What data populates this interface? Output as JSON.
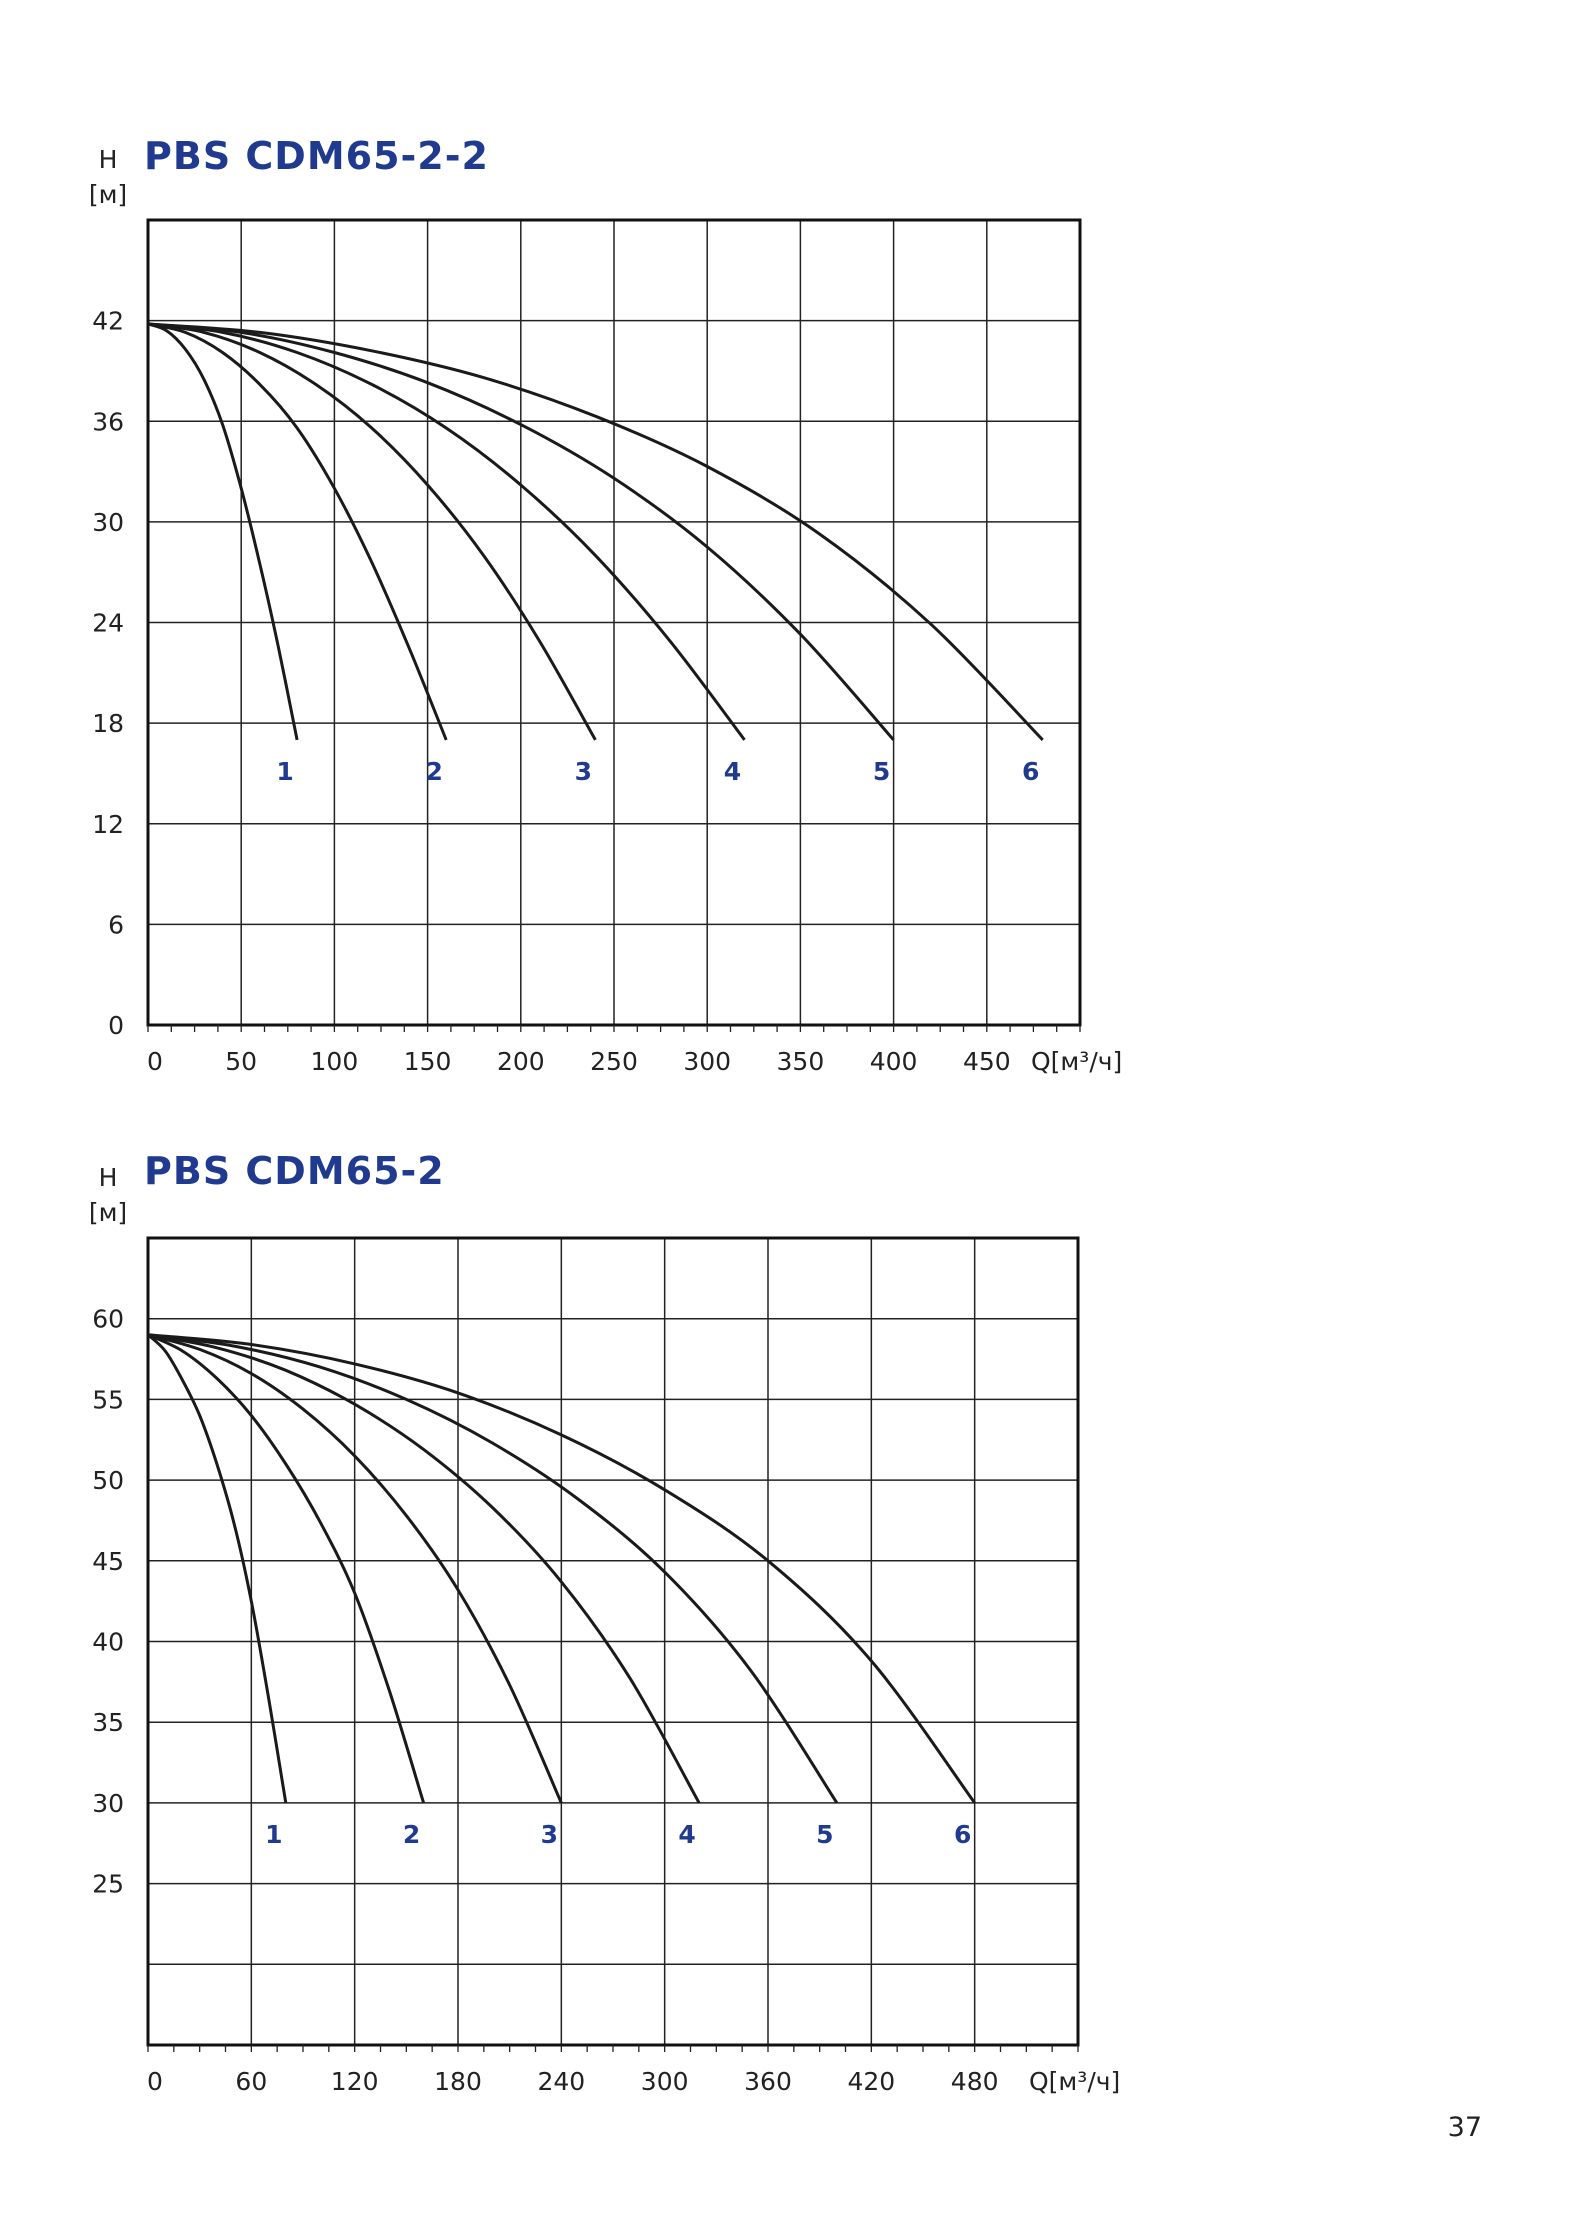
{
  "page_number": "37",
  "chart_data": [
    {
      "type": "line",
      "title": "PBS CDM65-2-2",
      "ylabel": "H",
      "yunit": "[м]",
      "xlabel": "Q[м³/ч]",
      "xlim": [
        0,
        500
      ],
      "ylim": [
        0,
        48
      ],
      "xticks": [
        0,
        50,
        100,
        150,
        200,
        250,
        300,
        350,
        400,
        450
      ],
      "xtick_labels": [
        "0",
        "50",
        "100",
        "150",
        "200",
        "250",
        "300",
        "350",
        "400",
        "450"
      ],
      "yticks": [
        0,
        6,
        12,
        18,
        24,
        30,
        36,
        42
      ],
      "ytick_labels": [
        "0",
        "6",
        "12",
        "18",
        "24",
        "30",
        "36",
        "42"
      ],
      "grid": true,
      "series": [
        {
          "label": "1",
          "x": [
            0,
            10,
            20,
            30,
            40,
            50,
            60,
            70,
            80
          ],
          "y": [
            41.8,
            41.4,
            40.3,
            38.5,
            35.8,
            32,
            27.5,
            22.5,
            17
          ]
        },
        {
          "label": "2",
          "x": [
            0,
            20,
            40,
            60,
            80,
            100,
            120,
            140,
            160
          ],
          "y": [
            41.8,
            41.3,
            40.1,
            38.2,
            35.6,
            32,
            27.6,
            22.5,
            17
          ]
        },
        {
          "label": "3",
          "x": [
            0,
            30,
            60,
            90,
            120,
            150,
            180,
            210,
            240
          ],
          "y": [
            41.8,
            41.3,
            40.1,
            38.2,
            35.6,
            32.2,
            28,
            22.9,
            17
          ]
        },
        {
          "label": "4",
          "x": [
            0,
            40,
            80,
            120,
            160,
            200,
            240,
            280,
            320
          ],
          "y": [
            41.8,
            41.3,
            40.1,
            38.2,
            35.6,
            32.2,
            28,
            22.9,
            17
          ]
        },
        {
          "label": "5",
          "x": [
            0,
            50,
            100,
            150,
            200,
            250,
            300,
            350,
            400
          ],
          "y": [
            41.8,
            41.3,
            40.1,
            38.3,
            35.8,
            32.6,
            28.5,
            23.3,
            17
          ]
        },
        {
          "label": "6",
          "x": [
            0,
            60,
            120,
            180,
            240,
            300,
            360,
            420,
            480
          ],
          "y": [
            41.8,
            41.3,
            40.2,
            38.6,
            36.3,
            33.3,
            29.3,
            23.9,
            17
          ]
        }
      ]
    },
    {
      "type": "line",
      "title": "PBS CDM65-2",
      "ylabel": "H",
      "yunit": "[м]",
      "xlabel": "Q[м³/ч]",
      "xlim": [
        0,
        540
      ],
      "ylim": [
        15,
        65
      ],
      "xticks": [
        0,
        60,
        120,
        180,
        240,
        300,
        360,
        420,
        480
      ],
      "xtick_labels": [
        "0",
        "60",
        "120",
        "180",
        "240",
        "300",
        "360",
        "420",
        "480"
      ],
      "yticks": [
        25,
        30,
        35,
        40,
        45,
        50,
        55,
        60
      ],
      "ytick_labels": [
        "25",
        "30",
        "35",
        "40",
        "45",
        "50",
        "55",
        "60"
      ],
      "ygrid_extra": [
        20
      ],
      "grid": true,
      "series": [
        {
          "label": "1",
          "x": [
            0,
            10,
            20,
            30,
            40,
            50,
            60,
            70,
            80
          ],
          "y": [
            59,
            58,
            56.2,
            54,
            51,
            47.3,
            42.5,
            36.5,
            30
          ]
        },
        {
          "label": "2",
          "x": [
            0,
            20,
            40,
            60,
            80,
            100,
            120,
            140,
            160
          ],
          "y": [
            59,
            58,
            56.3,
            54,
            51,
            47.4,
            43,
            37,
            30
          ]
        },
        {
          "label": "3",
          "x": [
            0,
            30,
            60,
            90,
            120,
            150,
            180,
            210,
            240
          ],
          "y": [
            59,
            58.1,
            56.6,
            54.4,
            51.5,
            47.8,
            43.2,
            37.3,
            30
          ]
        },
        {
          "label": "4",
          "x": [
            0,
            40,
            80,
            120,
            160,
            200,
            240,
            280,
            320
          ],
          "y": [
            59,
            58.2,
            56.8,
            54.7,
            51.9,
            48.3,
            43.7,
            37.7,
            30
          ]
        },
        {
          "label": "5",
          "x": [
            0,
            50,
            100,
            150,
            200,
            250,
            300,
            350,
            400
          ],
          "y": [
            59,
            58.3,
            57,
            55,
            52.3,
            48.8,
            44.3,
            38.2,
            30
          ]
        },
        {
          "label": "6",
          "x": [
            0,
            60,
            120,
            180,
            240,
            300,
            360,
            420,
            480
          ],
          "y": [
            59,
            58.4,
            57.2,
            55.4,
            52.8,
            49.4,
            45,
            38.8,
            30
          ]
        }
      ]
    }
  ]
}
